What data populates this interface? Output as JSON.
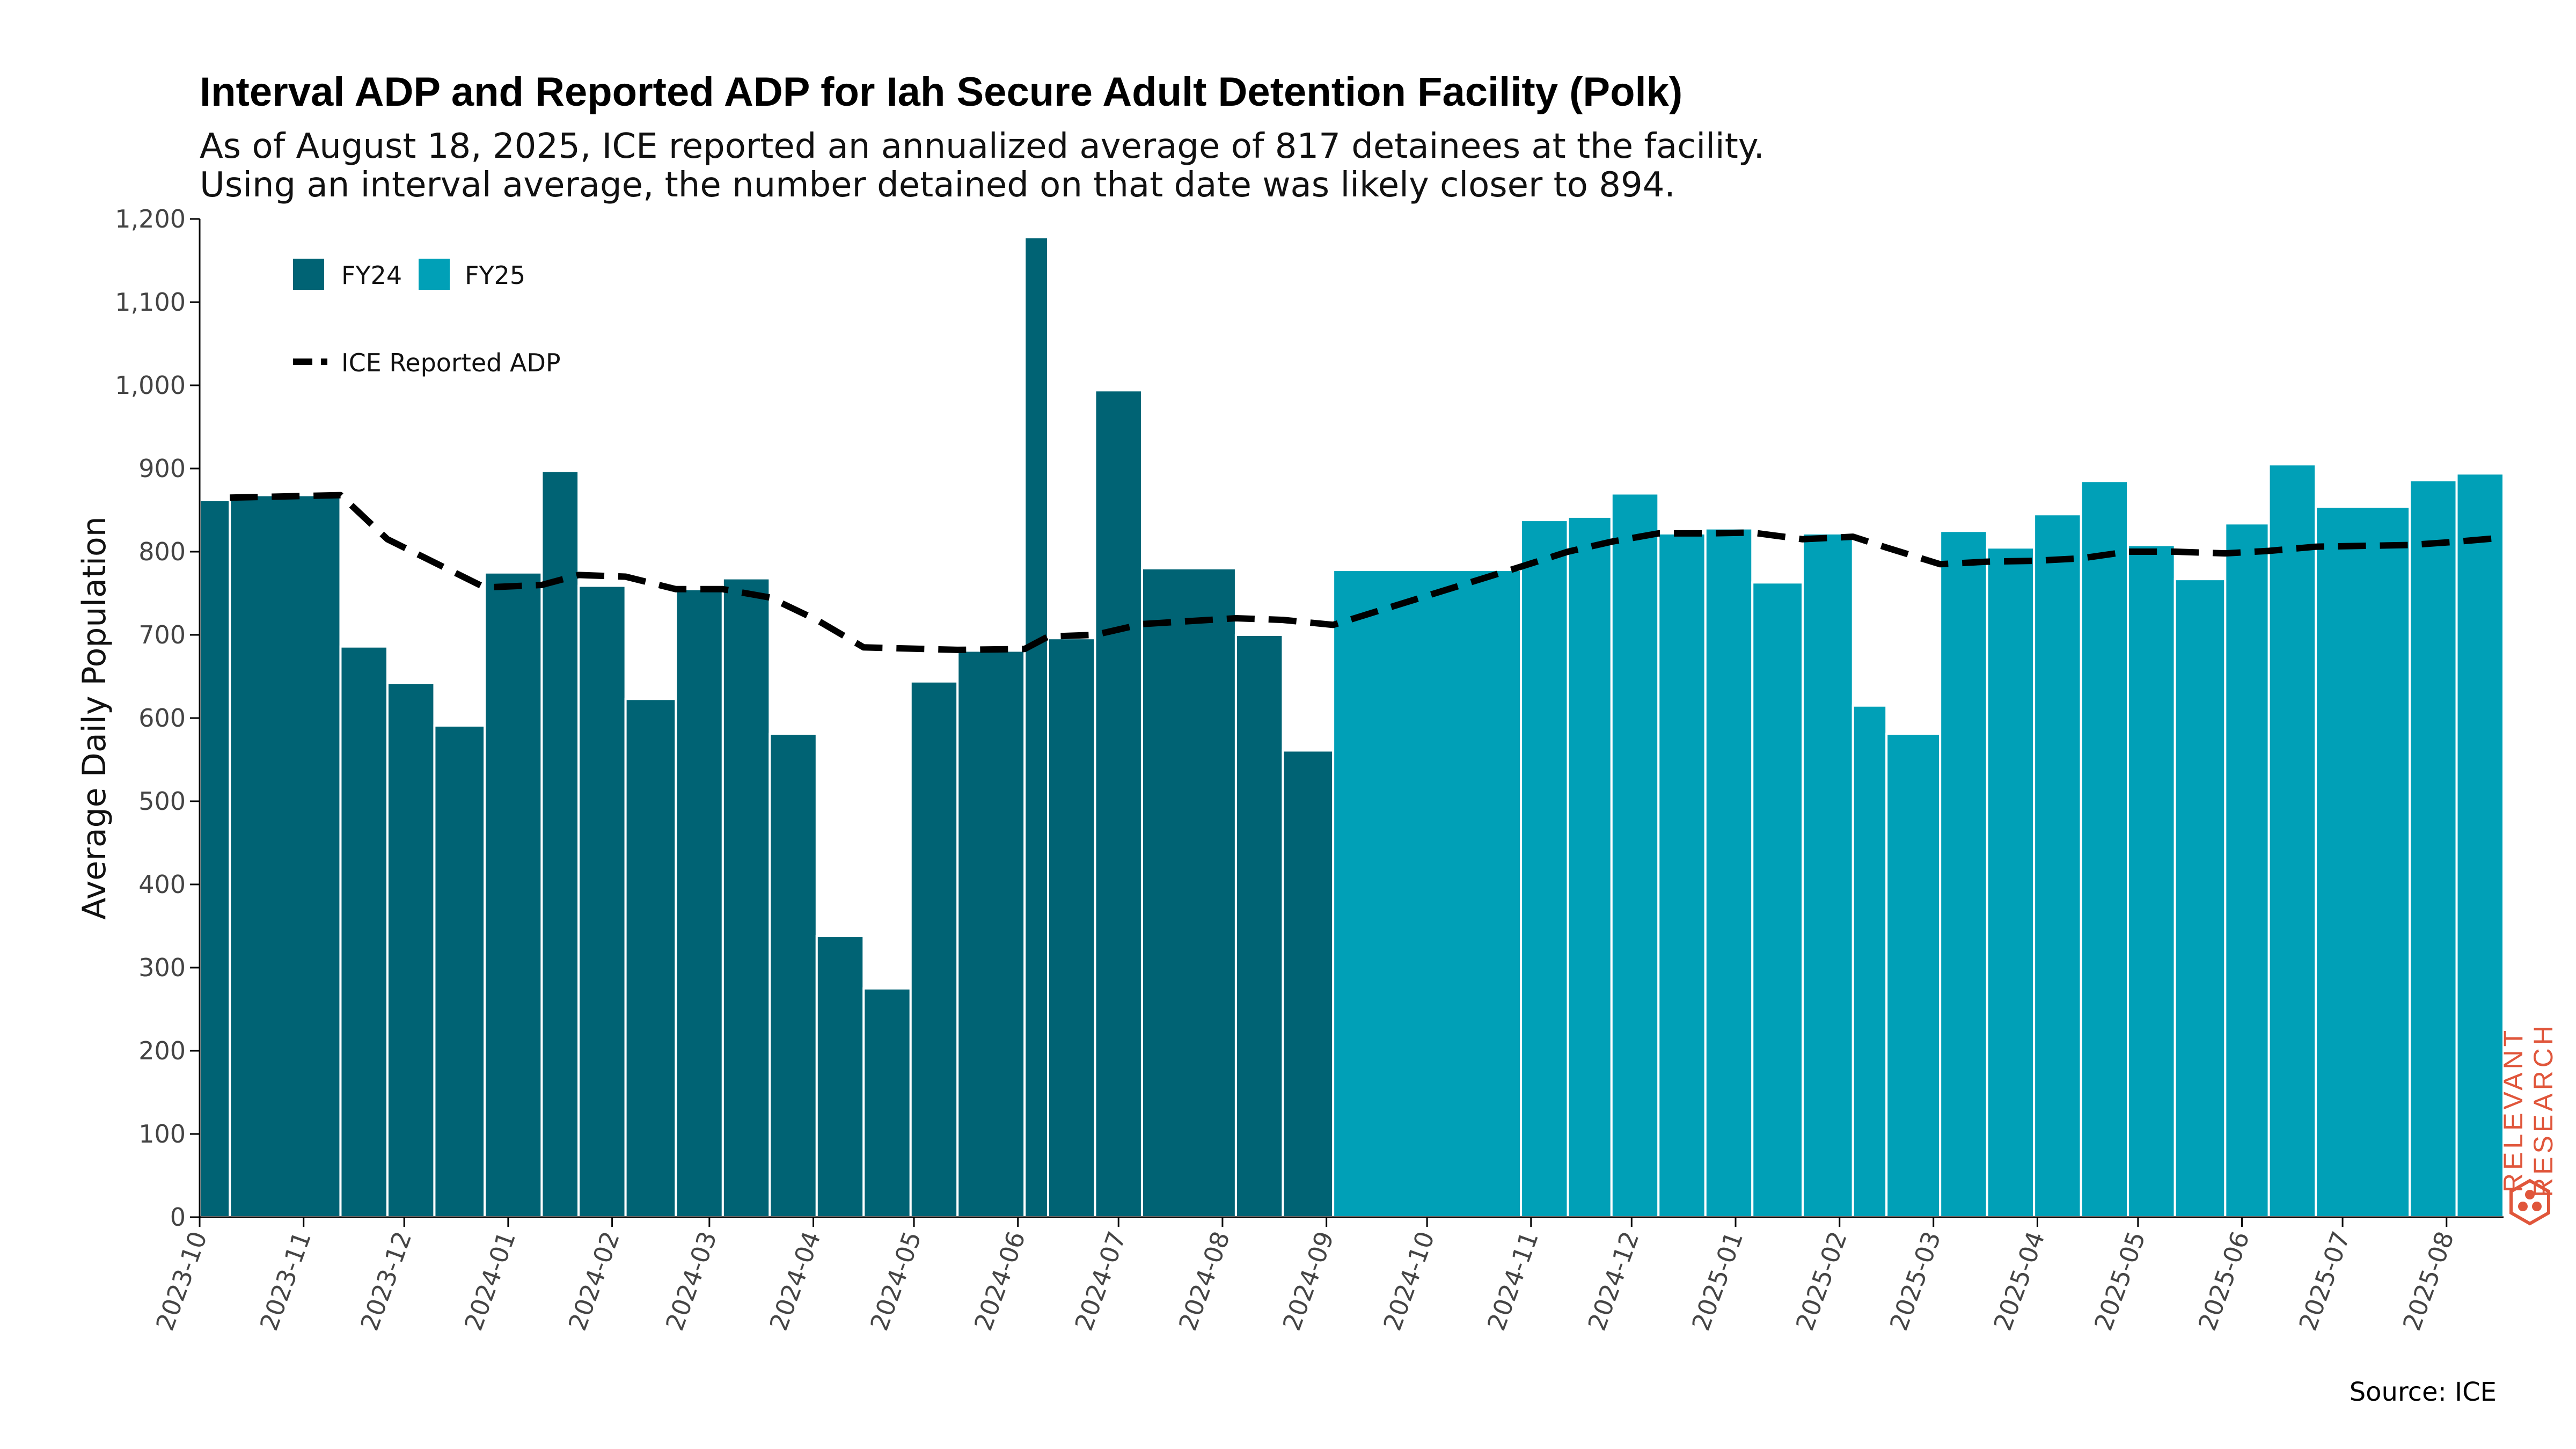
{
  "chart_data": {
    "type": "bar",
    "title": "Interval ADP and Reported ADP for Iah Secure Adult Detention Facility (Polk)",
    "subtitle": [
      "As of August 18, 2025, ICE reported an annualized average of 817 detainees at the facility.",
      "Using an interval average, the number detained on that date was likely closer to 894."
    ],
    "ylabel": "Average Daily Population",
    "xlabel": "",
    "ylim": [
      0,
      1200
    ],
    "y_ticks": [
      0,
      100,
      200,
      300,
      400,
      500,
      600,
      700,
      800,
      900,
      1000,
      1100,
      1200
    ],
    "y_tick_labels": [
      "0",
      "100",
      "200",
      "300",
      "400",
      "500",
      "600",
      "700",
      "800",
      "900",
      "1,000",
      "1,100",
      "1,200"
    ],
    "x_ticks": [
      "2023-10",
      "2023-11",
      "2023-12",
      "2024-01",
      "2024-02",
      "2024-03",
      "2024-04",
      "2024-05",
      "2024-06",
      "2024-07",
      "2024-08",
      "2024-09",
      "2024-10",
      "2024-11",
      "2024-12",
      "2025-01",
      "2025-02",
      "2025-03",
      "2025-04",
      "2025-05",
      "2025-06",
      "2025-07",
      "2025-08"
    ],
    "grid": false,
    "legend_position": "top-left",
    "colors": {
      "FY24": "#006374",
      "FY25": "#00a0b7",
      "line": "#000000",
      "brand": "#e0563b"
    },
    "series": [
      {
        "name": "FY24",
        "bars": [
          {
            "start": "2023-10-01",
            "end": "2023-10-10",
            "value": 862
          },
          {
            "start": "2023-10-10",
            "end": "2023-11-12",
            "value": 868
          },
          {
            "start": "2023-11-12",
            "end": "2023-11-26",
            "value": 686
          },
          {
            "start": "2023-11-26",
            "end": "2023-12-10",
            "value": 642
          },
          {
            "start": "2023-12-10",
            "end": "2023-12-25",
            "value": 591
          },
          {
            "start": "2023-12-25",
            "end": "2024-01-11",
            "value": 775
          },
          {
            "start": "2024-01-11",
            "end": "2024-01-22",
            "value": 897
          },
          {
            "start": "2024-01-22",
            "end": "2024-02-05",
            "value": 759
          },
          {
            "start": "2024-02-05",
            "end": "2024-02-20",
            "value": 623
          },
          {
            "start": "2024-02-20",
            "end": "2024-03-05",
            "value": 755
          },
          {
            "start": "2024-03-05",
            "end": "2024-03-19",
            "value": 768
          },
          {
            "start": "2024-03-19",
            "end": "2024-04-02",
            "value": 581
          },
          {
            "start": "2024-04-02",
            "end": "2024-04-16",
            "value": 338
          },
          {
            "start": "2024-04-16",
            "end": "2024-04-30",
            "value": 275
          },
          {
            "start": "2024-04-30",
            "end": "2024-05-14",
            "value": 644
          },
          {
            "start": "2024-05-14",
            "end": "2024-06-03",
            "value": 681
          },
          {
            "start": "2024-06-03",
            "end": "2024-06-10",
            "value": 1178
          },
          {
            "start": "2024-06-10",
            "end": "2024-06-24",
            "value": 696
          },
          {
            "start": "2024-06-24",
            "end": "2024-07-08",
            "value": 994
          },
          {
            "start": "2024-07-08",
            "end": "2024-08-05",
            "value": 780
          },
          {
            "start": "2024-08-05",
            "end": "2024-08-19",
            "value": 700
          },
          {
            "start": "2024-08-19",
            "end": "2024-09-03",
            "value": 561
          }
        ]
      },
      {
        "name": "FY25",
        "bars": [
          {
            "start": "2024-09-03",
            "end": "2024-10-29",
            "value": 778
          },
          {
            "start": "2024-10-29",
            "end": "2024-11-12",
            "value": 838
          },
          {
            "start": "2024-11-12",
            "end": "2024-11-25",
            "value": 842
          },
          {
            "start": "2024-11-25",
            "end": "2024-12-09",
            "value": 870
          },
          {
            "start": "2024-12-09",
            "end": "2024-12-23",
            "value": 822
          },
          {
            "start": "2024-12-23",
            "end": "2025-01-06",
            "value": 828
          },
          {
            "start": "2025-01-06",
            "end": "2025-01-21",
            "value": 763
          },
          {
            "start": "2025-01-21",
            "end": "2025-02-05",
            "value": 822
          },
          {
            "start": "2025-02-05",
            "end": "2025-02-15",
            "value": 615
          },
          {
            "start": "2025-02-15",
            "end": "2025-03-03",
            "value": 581
          },
          {
            "start": "2025-03-03",
            "end": "2025-03-17",
            "value": 825
          },
          {
            "start": "2025-03-17",
            "end": "2025-03-31",
            "value": 805
          },
          {
            "start": "2025-03-31",
            "end": "2025-04-14",
            "value": 845
          },
          {
            "start": "2025-04-14",
            "end": "2025-04-28",
            "value": 885
          },
          {
            "start": "2025-04-28",
            "end": "2025-05-12",
            "value": 808
          },
          {
            "start": "2025-05-12",
            "end": "2025-05-27",
            "value": 767
          },
          {
            "start": "2025-05-27",
            "end": "2025-06-09",
            "value": 834
          },
          {
            "start": "2025-06-09",
            "end": "2025-06-23",
            "value": 905
          },
          {
            "start": "2025-06-23",
            "end": "2025-07-21",
            "value": 854
          },
          {
            "start": "2025-07-21",
            "end": "2025-08-04",
            "value": 886
          },
          {
            "start": "2025-08-04",
            "end": "2025-08-18",
            "value": 894
          }
        ]
      },
      {
        "name": "ICE Reported ADP",
        "type": "line",
        "style": "dashed",
        "points": [
          {
            "x": "2023-10-10",
            "y": 865
          },
          {
            "x": "2023-11-12",
            "y": 868
          },
          {
            "x": "2023-11-26",
            "y": 815
          },
          {
            "x": "2023-12-25",
            "y": 757
          },
          {
            "x": "2024-01-11",
            "y": 760
          },
          {
            "x": "2024-01-22",
            "y": 772
          },
          {
            "x": "2024-02-05",
            "y": 770
          },
          {
            "x": "2024-02-20",
            "y": 755
          },
          {
            "x": "2024-03-05",
            "y": 755
          },
          {
            "x": "2024-03-19",
            "y": 745
          },
          {
            "x": "2024-04-02",
            "y": 718
          },
          {
            "x": "2024-04-16",
            "y": 685
          },
          {
            "x": "2024-05-14",
            "y": 682
          },
          {
            "x": "2024-06-03",
            "y": 683
          },
          {
            "x": "2024-06-10",
            "y": 698
          },
          {
            "x": "2024-06-24",
            "y": 700
          },
          {
            "x": "2024-07-08",
            "y": 713
          },
          {
            "x": "2024-08-05",
            "y": 720
          },
          {
            "x": "2024-08-19",
            "y": 718
          },
          {
            "x": "2024-09-03",
            "y": 712
          },
          {
            "x": "2024-10-29",
            "y": 782
          },
          {
            "x": "2024-11-12",
            "y": 800
          },
          {
            "x": "2024-11-25",
            "y": 812
          },
          {
            "x": "2024-12-09",
            "y": 822
          },
          {
            "x": "2024-12-23",
            "y": 822
          },
          {
            "x": "2025-01-06",
            "y": 823
          },
          {
            "x": "2025-01-21",
            "y": 815
          },
          {
            "x": "2025-02-05",
            "y": 818
          },
          {
            "x": "2025-02-15",
            "y": 805
          },
          {
            "x": "2025-03-03",
            "y": 785
          },
          {
            "x": "2025-03-17",
            "y": 788
          },
          {
            "x": "2025-03-31",
            "y": 789
          },
          {
            "x": "2025-04-14",
            "y": 792
          },
          {
            "x": "2025-04-28",
            "y": 800
          },
          {
            "x": "2025-05-12",
            "y": 800
          },
          {
            "x": "2025-05-27",
            "y": 798
          },
          {
            "x": "2025-06-09",
            "y": 801
          },
          {
            "x": "2025-06-23",
            "y": 806
          },
          {
            "x": "2025-07-21",
            "y": 808
          },
          {
            "x": "2025-08-04",
            "y": 812
          },
          {
            "x": "2025-08-18",
            "y": 817
          }
        ]
      }
    ],
    "legend": [
      {
        "label": "FY24",
        "kind": "bar"
      },
      {
        "label": "FY25",
        "kind": "bar"
      },
      {
        "label": "ICE Reported ADP",
        "kind": "dashed-line"
      }
    ]
  },
  "source": "Source: ICE",
  "brand": {
    "line1": "RELEVANT",
    "line2": "RESEARCH",
    "icon": "hexagon-logo-icon"
  }
}
